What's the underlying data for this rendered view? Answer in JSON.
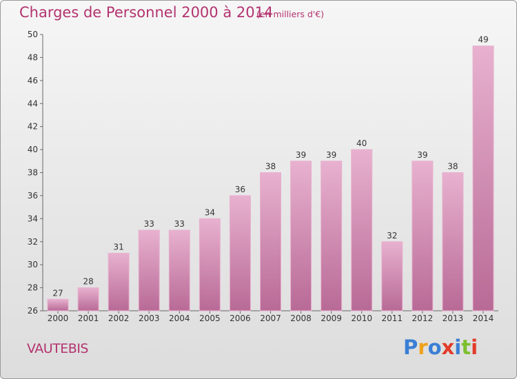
{
  "chart_data": {
    "type": "bar",
    "title": "Charges de Personnel 2000 à 2014",
    "subtitle": "(en milliers d'€)",
    "categories": [
      "2000",
      "2001",
      "2002",
      "2003",
      "2004",
      "2005",
      "2006",
      "2007",
      "2008",
      "2009",
      "2010",
      "2011",
      "2012",
      "2013",
      "2014"
    ],
    "values": [
      27,
      28,
      31,
      33,
      33,
      34,
      36,
      38,
      39,
      39,
      40,
      32,
      39,
      38,
      49
    ],
    "ylim": [
      26,
      50
    ],
    "yticks": [
      26,
      28,
      30,
      32,
      34,
      36,
      38,
      40,
      42,
      44,
      46,
      48,
      50
    ],
    "grid": false,
    "bar_color": "#d98fb7",
    "bar_color_light": "#e8b1cf",
    "bar_color_dark": "#b86a96",
    "title_color": "#b3336f"
  },
  "footer": {
    "commune": "VAUTEBIS",
    "logo_letters": [
      "P",
      "r",
      "o",
      "x",
      "i",
      "t",
      "i"
    ],
    "logo_colors": [
      "#3a7fd5",
      "#f0a21b",
      "#3a7fd5",
      "#e23c2a",
      "#3a7fd5",
      "#7cbf2e",
      "#e23c2a"
    ]
  }
}
